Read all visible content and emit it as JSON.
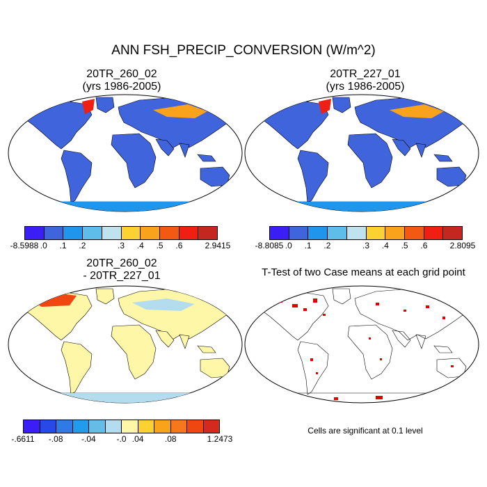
{
  "title": "ANN FSH_PRECIP_CONVERSION (W/m^2)",
  "panels": [
    {
      "line1": "20TR_260_02",
      "line2": "(yrs 1986-2005)"
    },
    {
      "line1": "20TR_227_01",
      "line2": "(yrs 1986-2005)"
    },
    {
      "line1": "20TR_260_02",
      "line2": "- 20TR_227_01"
    },
    {
      "line1": "T-Test of two Case means at each grid point",
      "line2": ""
    }
  ],
  "colorbars": [
    {
      "labels": [
        "-8.5988",
        ".0",
        ".1",
        ".2",
        ".3",
        ".4",
        ".5",
        ".6",
        "2.9415"
      ],
      "colors": [
        "#3a1ef5",
        "#3f64dc",
        "#1f96ec",
        "#5ebde9",
        "#bfe2ef",
        "#fbd232",
        "#f9a21c",
        "#f25a14",
        "#f01f14",
        "#c42620"
      ]
    },
    {
      "labels": [
        "-8.8085",
        ".0",
        ".1",
        ".2",
        ".3",
        ".4",
        ".5",
        ".6",
        "2.8095"
      ],
      "colors": [
        "#3a1ef5",
        "#3f64dc",
        "#1f96ec",
        "#5ebde9",
        "#bfe2ef",
        "#fbd232",
        "#f9a21c",
        "#f25a14",
        "#f01f14",
        "#c42620"
      ]
    },
    {
      "labels": [
        "-.6611",
        "-.08",
        "-.04",
        "-.0",
        ".04",
        ".08",
        "1.2473"
      ],
      "colors": [
        "#3a1ef5",
        "#2848e8",
        "#2f7ae4",
        "#1f9cee",
        "#63bde7",
        "#b3dcef",
        "#fff7a8",
        "#fbd232",
        "#f9a21c",
        "#f6781a",
        "#f0460f",
        "#d42a1e"
      ]
    }
  ],
  "note": "Cells are significant at 0.1 level"
}
